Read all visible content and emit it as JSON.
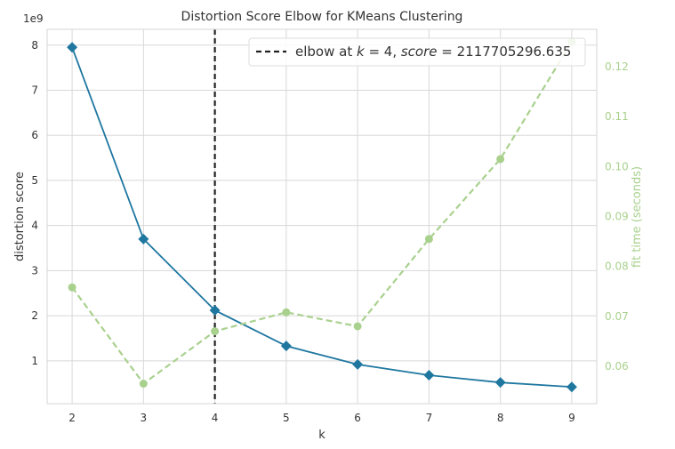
{
  "chart_data": {
    "type": "line",
    "title": "Distortion Score Elbow for KMeans Clustering",
    "xlabel": "k",
    "ylabel": "distortion score",
    "ylabel_right": "fit time (seconds)",
    "y_offset_label": "1e9",
    "x": [
      2,
      3,
      4,
      5,
      6,
      7,
      8,
      9
    ],
    "xlim": [
      1.65,
      9.35
    ],
    "ylim": [
      0.05,
      8.35
    ],
    "ylim_right": [
      0.0525,
      0.1275
    ],
    "xticks": [
      "2",
      "3",
      "4",
      "5",
      "6",
      "7",
      "8",
      "9"
    ],
    "yticks": [
      "1",
      "2",
      "3",
      "4",
      "5",
      "6",
      "7",
      "8"
    ],
    "yticks_right": [
      "0.06",
      "0.07",
      "0.08",
      "0.09",
      "0.10",
      "0.11",
      "0.12"
    ],
    "grid": true,
    "series": [
      {
        "axis": "left",
        "values": [
          7.95,
          3.7,
          2.12,
          1.33,
          0.92,
          0.68,
          0.52,
          0.42
        ],
        "color": "#1f77a0",
        "marker": "diamond",
        "style": "solid"
      },
      {
        "axis": "right",
        "values": [
          0.0758,
          0.0565,
          0.067,
          0.0708,
          0.068,
          0.0855,
          0.1015,
          0.125
        ],
        "color": "#a9d18e",
        "marker": "circle",
        "style": "dashed"
      }
    ],
    "elbow": {
      "k": 4,
      "color": "#222222",
      "style": "dashed"
    },
    "legend": {
      "position": "top-right",
      "prefix": "elbow at ",
      "k_symbol": "k",
      "k_value": " = 4, ",
      "score_symbol": "score",
      "score_value": " = 2117705296.635"
    }
  }
}
